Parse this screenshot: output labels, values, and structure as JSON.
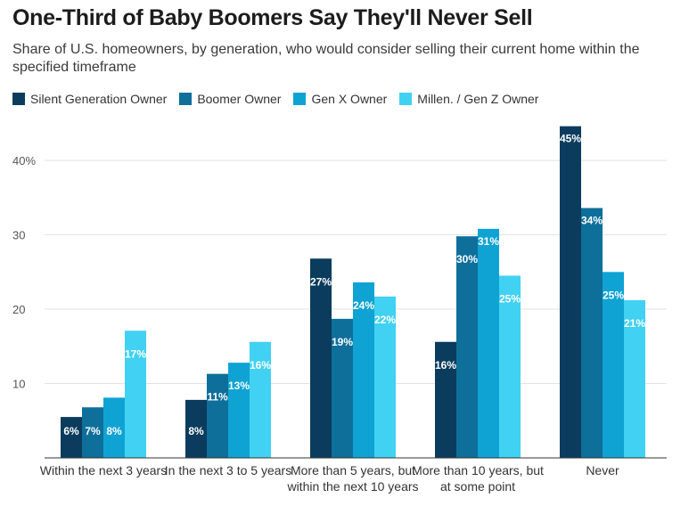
{
  "chart_data": {
    "type": "bar",
    "title": "One-Third of Baby Boomers Say They'll Never Sell",
    "subtitle": "Share of U.S. homeowners, by generation, who would consider selling their current home within the specified timeframe",
    "categories": [
      "Within the next 3 years",
      "In the next 3 to 5 years",
      "More than 5 years, but within the next 10 years",
      "More than 10 years, but at some point",
      "Never"
    ],
    "series": [
      {
        "name": "Silent Generation Owner",
        "color": "#0b3c5d",
        "values": [
          5.5,
          7.8,
          26.8,
          15.6,
          44.6
        ],
        "labels": [
          "6%",
          "8%",
          "27%",
          "16%",
          "45%"
        ]
      },
      {
        "name": "Boomer Owner",
        "color": "#0e6f9b",
        "values": [
          6.8,
          11.3,
          18.7,
          29.8,
          33.6
        ],
        "labels": [
          "7%",
          "11%",
          "19%",
          "30%",
          "34%"
        ]
      },
      {
        "name": "Gen X Owner",
        "color": "#0fa3d4",
        "values": [
          8.1,
          12.8,
          23.6,
          30.8,
          25.0
        ],
        "labels": [
          "8%",
          "13%",
          "24%",
          "31%",
          "25%"
        ]
      },
      {
        "name": "Millen. / Gen Z Owner",
        "color": "#41d1f2",
        "values": [
          17.1,
          15.6,
          21.7,
          24.5,
          21.2
        ],
        "labels": [
          "17%",
          "16%",
          "22%",
          "25%",
          "21%"
        ]
      }
    ],
    "yticks": [
      10,
      20,
      30,
      40
    ],
    "ytick_labels": [
      "10",
      "20",
      "30",
      "40%"
    ],
    "ylim": [
      0,
      46
    ],
    "grid": true,
    "legend": "top-left"
  }
}
